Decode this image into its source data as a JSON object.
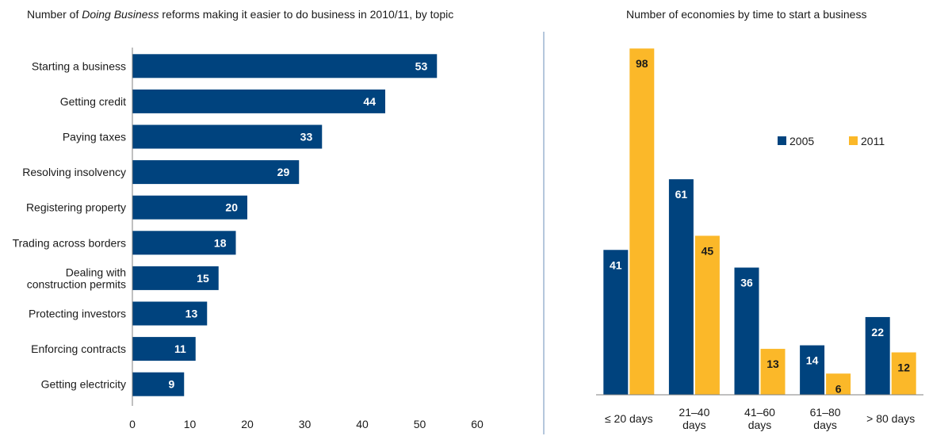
{
  "colors": {
    "primary": "#00437e",
    "secondary": "#fbb829",
    "divider": "#6b8fb8",
    "axis": "#808080"
  },
  "chart_data": [
    {
      "type": "bar",
      "orientation": "horizontal",
      "title_prefix": "Number of ",
      "title_italic": "Doing Business",
      "title_suffix": " reforms making it easier to do business in 2010/11, by topic",
      "categories": [
        [
          "Starting a business"
        ],
        [
          "Getting credit"
        ],
        [
          "Paying taxes"
        ],
        [
          "Resolving insolvency"
        ],
        [
          "Registering property"
        ],
        [
          "Trading across borders"
        ],
        [
          "Dealing with",
          "construction permits"
        ],
        [
          "Protecting investors"
        ],
        [
          "Enforcing contracts"
        ],
        [
          "Getting electricity"
        ]
      ],
      "values": [
        53,
        44,
        33,
        29,
        20,
        18,
        15,
        13,
        11,
        9
      ],
      "xlim": [
        0,
        60
      ],
      "xticks": [
        0,
        10,
        20,
        30,
        40,
        50,
        60
      ],
      "grid": false
    },
    {
      "type": "bar",
      "orientation": "vertical",
      "title": "Number of economies by time to start a business",
      "categories": [
        [
          "≤ 20 days"
        ],
        [
          "21–40",
          "days"
        ],
        [
          "41–60",
          "days"
        ],
        [
          "61–80",
          "days"
        ],
        [
          "> 80 days"
        ]
      ],
      "series": [
        {
          "name": "2005",
          "values": [
            41,
            61,
            36,
            14,
            22
          ],
          "color": "#00437e",
          "label_color": "#ffffff"
        },
        {
          "name": "2011",
          "values": [
            98,
            45,
            13,
            6,
            12
          ],
          "color": "#fbb829",
          "label_color": "#1a1a1a"
        }
      ],
      "ylim": [
        0,
        105
      ],
      "legend": "right",
      "grid": false
    }
  ]
}
